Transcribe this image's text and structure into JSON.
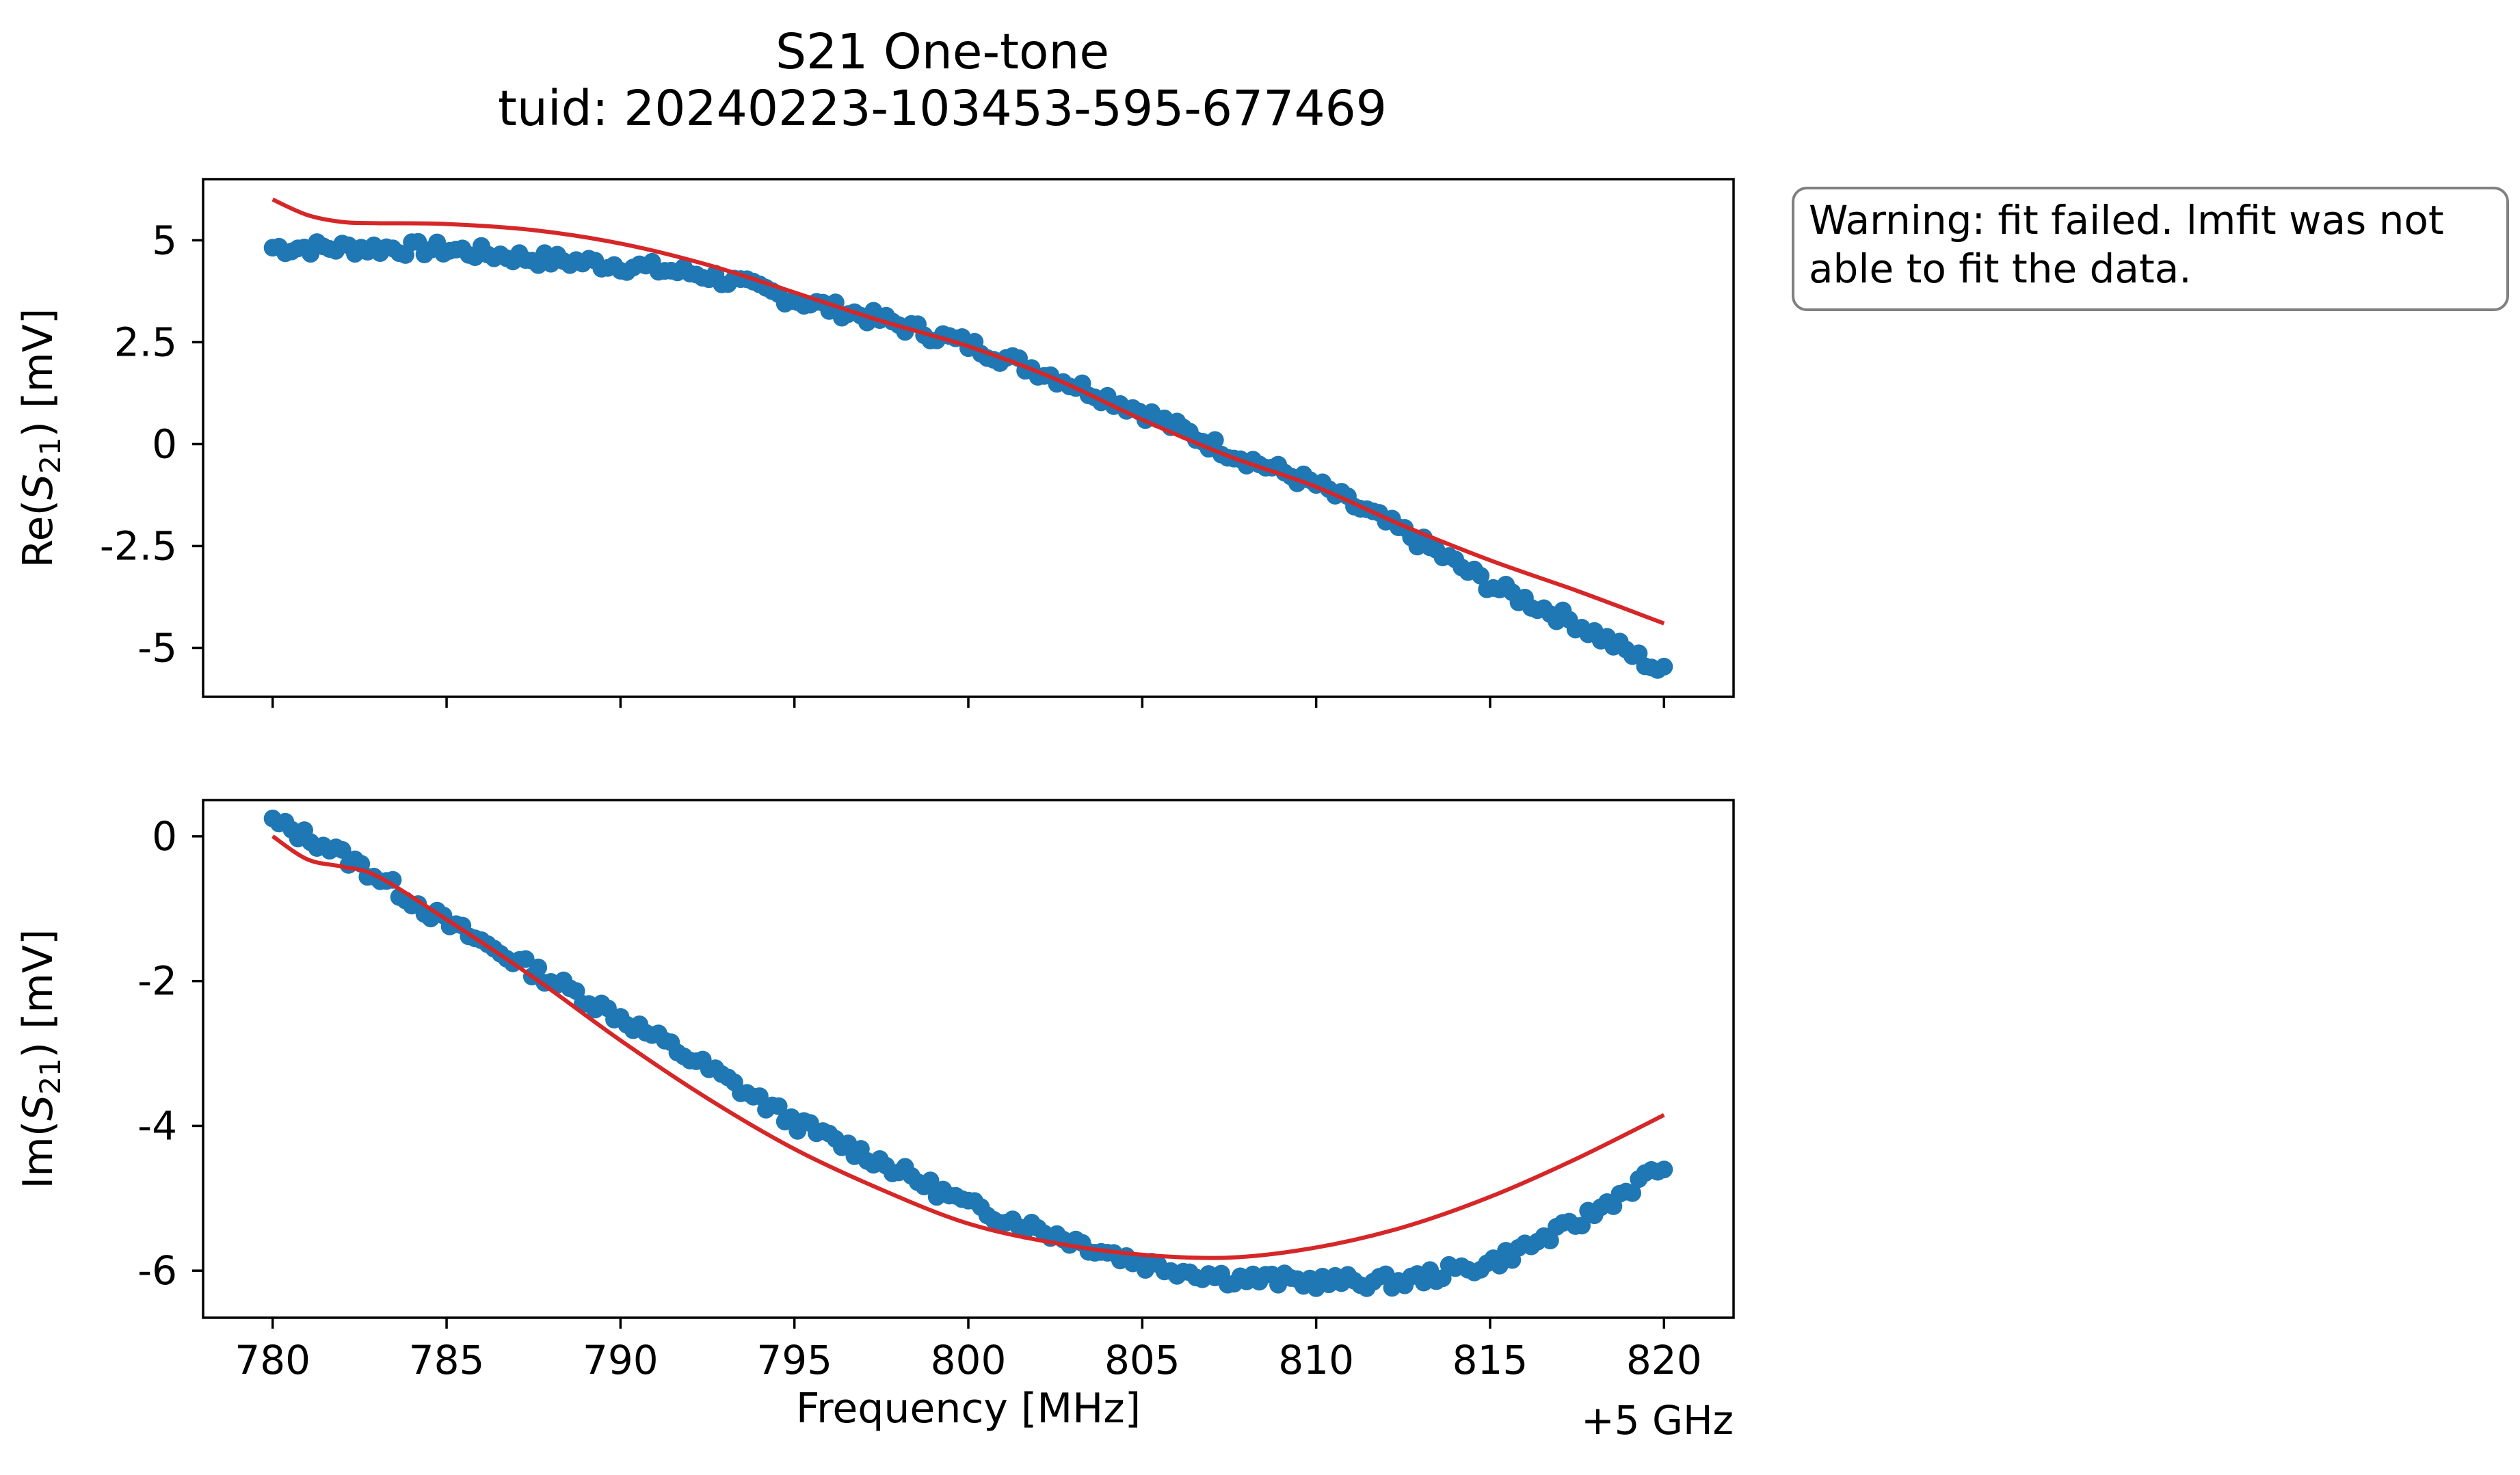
{
  "figure": {
    "title_line1": "S21 One-tone",
    "title_line2": "tuid: 20240223-103453-595-677469",
    "warning_line1": "Warning: fit failed. lmfit was not",
    "warning_line2": "able to fit the data.",
    "x_offset_label": "+5 GHz"
  },
  "colors": {
    "data": "#1f77b4",
    "fit": "#d62728",
    "axes": "#000000",
    "warning_border": "#808080"
  },
  "chart_data": [
    {
      "type": "scatter",
      "panel": "top",
      "ylabel_main": "Re(",
      "ylabel_var": "S",
      "ylabel_sub": "21",
      "ylabel_unit": ") [mV]",
      "xlabel": "",
      "xlim": [
        778,
        822
      ],
      "ylim": [
        -6.2,
        6.5
      ],
      "xticks": [
        780,
        785,
        790,
        795,
        800,
        805,
        810,
        815,
        820
      ],
      "xtick_labels": [
        "",
        "",
        "",
        "",
        "",
        "",
        "",
        "",
        ""
      ],
      "yticks": [
        5,
        2.5,
        0,
        -2.5,
        -5
      ],
      "ytick_labels": [
        "5",
        "2.5",
        "0",
        "-2.5",
        "-5"
      ],
      "grid": false,
      "series": [
        {
          "style": "markers",
          "color": "#1f77b4",
          "x": [
            780,
            782.5,
            785,
            787.5,
            790,
            792.5,
            795,
            797.5,
            800,
            802.5,
            805,
            807.5,
            810,
            812.5,
            815,
            817.5,
            820
          ],
          "y": [
            4.82,
            4.82,
            4.78,
            4.55,
            4.4,
            4.15,
            3.55,
            3.05,
            2.45,
            1.65,
            0.8,
            -0.2,
            -1.0,
            -2.15,
            -3.45,
            -4.4,
            -5.6
          ]
        },
        {
          "style": "line",
          "color": "#d62728",
          "x": [
            780,
            781,
            782,
            783,
            785,
            787.5,
            790,
            792.5,
            795,
            797.5,
            800,
            802.5,
            805,
            807.5,
            810,
            812.5,
            815,
            817.5,
            820
          ],
          "y": [
            6.0,
            5.62,
            5.45,
            5.42,
            5.4,
            5.25,
            4.92,
            4.4,
            3.72,
            3.02,
            2.4,
            1.6,
            0.6,
            -0.3,
            -1.05,
            -2.0,
            -2.85,
            -3.6,
            -4.4
          ]
        }
      ]
    },
    {
      "type": "scatter",
      "panel": "bottom",
      "ylabel_main": "Im(",
      "ylabel_var": "S",
      "ylabel_sub": "21",
      "ylabel_unit": ") [mV]",
      "xlabel": "Frequency [MHz]",
      "xlim": [
        778,
        822
      ],
      "ylim": [
        -6.65,
        0.5
      ],
      "xticks": [
        780,
        785,
        790,
        795,
        800,
        805,
        810,
        815,
        820
      ],
      "xtick_labels": [
        "780",
        "785",
        "790",
        "795",
        "800",
        "805",
        "810",
        "815",
        "820"
      ],
      "yticks": [
        0,
        -2,
        -4,
        -6
      ],
      "ytick_labels": [
        "0",
        "-2",
        "-4",
        "-6"
      ],
      "grid": false,
      "series": [
        {
          "style": "markers",
          "color": "#1f77b4",
          "x": [
            780,
            781.5,
            783,
            785,
            787.5,
            790,
            792.5,
            795,
            797.5,
            800,
            802.5,
            805,
            807.5,
            810,
            812.5,
            815,
            817.5,
            820
          ],
          "y": [
            0.2,
            -0.12,
            -0.55,
            -1.2,
            -1.85,
            -2.5,
            -3.2,
            -3.95,
            -4.5,
            -5.1,
            -5.5,
            -5.9,
            -6.1,
            -6.15,
            -6.15,
            -5.9,
            -5.35,
            -4.55
          ]
        },
        {
          "style": "line",
          "color": "#d62728",
          "x": [
            780,
            781,
            782,
            783,
            785,
            787.5,
            790,
            792.5,
            795,
            797.5,
            800,
            802.5,
            805,
            807.5,
            810,
            812.5,
            815,
            817.5,
            820
          ],
          "y": [
            0.0,
            -0.32,
            -0.42,
            -0.55,
            -1.15,
            -1.95,
            -2.82,
            -3.62,
            -4.32,
            -4.88,
            -5.35,
            -5.62,
            -5.78,
            -5.82,
            -5.68,
            -5.4,
            -4.98,
            -4.45,
            -3.85
          ]
        }
      ]
    }
  ]
}
